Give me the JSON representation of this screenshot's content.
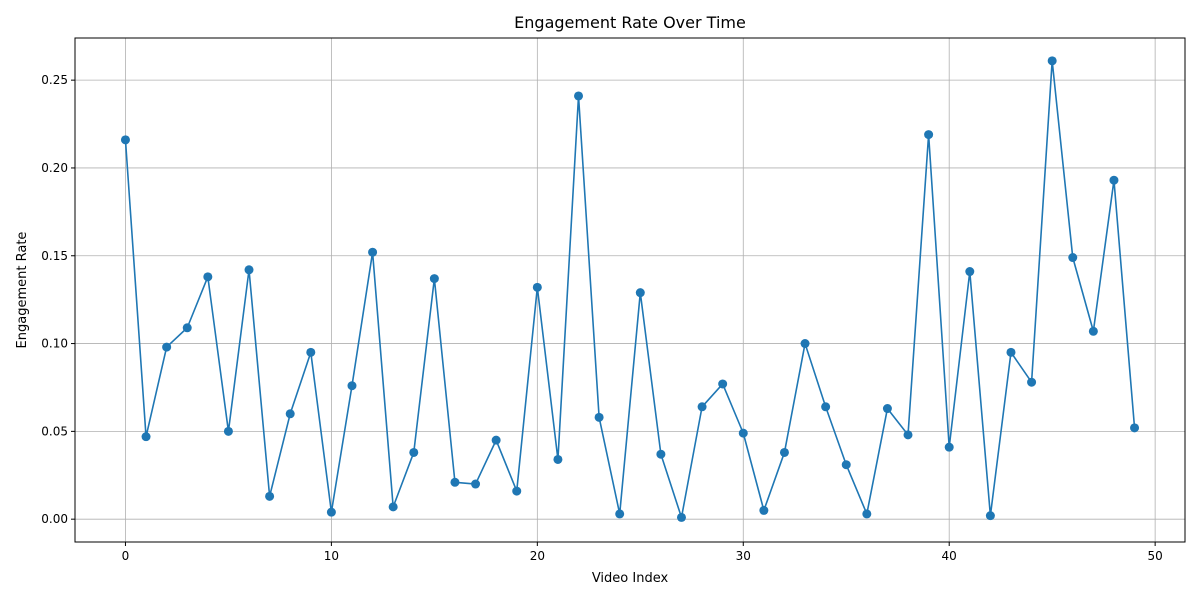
{
  "chart_data": {
    "type": "line",
    "title": "Engagement Rate Over Time",
    "xlabel": "Video Index",
    "ylabel": "Engagement Rate",
    "xlim": [
      -2.45,
      51.45
    ],
    "ylim": [
      -0.013,
      0.274
    ],
    "xticks": [
      0,
      10,
      20,
      30,
      40,
      50
    ],
    "xtick_labels": [
      "0",
      "10",
      "20",
      "30",
      "40",
      "50"
    ],
    "yticks": [
      0,
      0.05,
      0.1,
      0.15,
      0.2,
      0.25
    ],
    "ytick_labels": [
      "0.00",
      "0.05",
      "0.10",
      "0.15",
      "0.20",
      "0.25"
    ],
    "grid": true,
    "legend": false,
    "marker": "circle",
    "color": "#1f77b4",
    "series": [
      {
        "x": [
          0,
          1,
          2,
          3,
          4,
          5,
          6,
          7,
          8,
          9,
          10,
          11,
          12,
          13,
          14,
          15,
          16,
          17,
          18,
          19,
          20,
          21,
          22,
          23,
          24,
          25,
          26,
          27,
          28,
          29,
          30,
          31,
          32,
          33,
          34,
          35,
          36,
          37,
          38,
          39,
          40,
          41,
          42,
          43,
          44,
          45,
          46,
          47,
          48,
          49
        ],
        "values": [
          0.216,
          0.047,
          0.098,
          0.109,
          0.138,
          0.05,
          0.142,
          0.013,
          0.06,
          0.095,
          0.004,
          0.076,
          0.152,
          0.007,
          0.038,
          0.137,
          0.021,
          0.02,
          0.045,
          0.016,
          0.132,
          0.034,
          0.241,
          0.058,
          0.003,
          0.129,
          0.037,
          0.001,
          0.064,
          0.077,
          0.049,
          0.005,
          0.038,
          0.1,
          0.064,
          0.031,
          0.003,
          0.063,
          0.048,
          0.219,
          0.041,
          0.141,
          0.002,
          0.095,
          0.078,
          0.261,
          0.149,
          0.107,
          0.193,
          0.052
        ]
      }
    ]
  }
}
